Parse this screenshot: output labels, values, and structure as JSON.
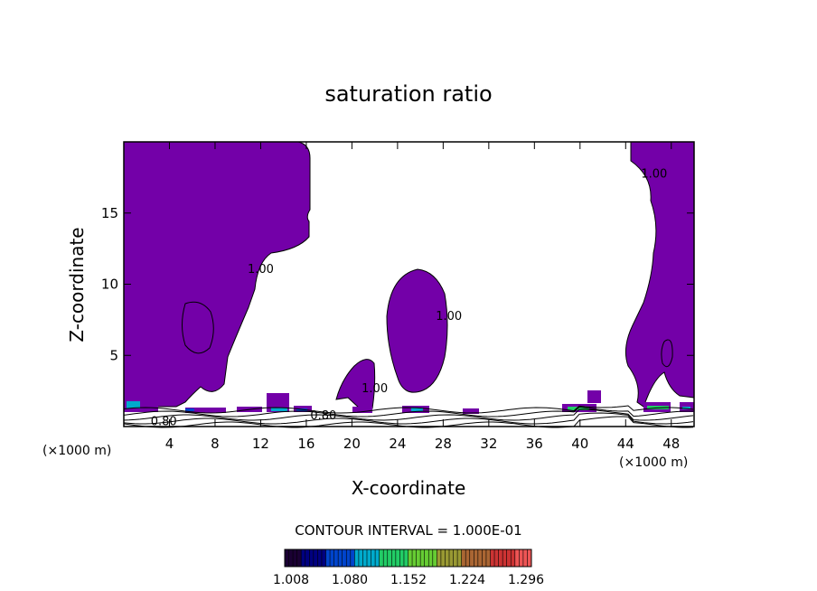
{
  "chart_data": {
    "type": "heatmap",
    "title": "saturation ratio",
    "xlabel": "X-coordinate",
    "ylabel": "Z-coordinate",
    "x_unit": "(×1000 m)",
    "z_unit": "(×1000 m)",
    "xlim": [
      0,
      50
    ],
    "ylim": [
      0,
      20
    ],
    "x_ticks": [
      4,
      8,
      12,
      16,
      20,
      24,
      28,
      32,
      36,
      40,
      44,
      48
    ],
    "y_ticks": [
      5,
      10,
      15
    ],
    "contour_interval_text": "CONTOUR INTERVAL = 1.000E-01",
    "contour_labels": [
      {
        "text": "1.00",
        "x": 12.0,
        "y": 10.8
      },
      {
        "text": "1.00",
        "x": 28.5,
        "y": 7.5
      },
      {
        "text": "1.00",
        "x": 46.5,
        "y": 17.5
      },
      {
        "text": "1.00",
        "x": 22.0,
        "y": 2.4
      },
      {
        "text": "0.80",
        "x": 3.5,
        "y": 0.1
      },
      {
        "text": "0.80",
        "x": 17.5,
        "y": 0.5
      }
    ],
    "colorbar": {
      "min": 1.008,
      "max": 1.296,
      "tick_labels": [
        "1.008",
        "1.080",
        "1.152",
        "1.224",
        "1.296"
      ],
      "colors": [
        "#1a0033",
        "#000080",
        "#0044cc",
        "#00aacc",
        "#22cc66",
        "#66cc33",
        "#999933",
        "#aa6633",
        "#cc3333",
        "#ee5555"
      ]
    },
    "fill_color": "#7300a8"
  }
}
